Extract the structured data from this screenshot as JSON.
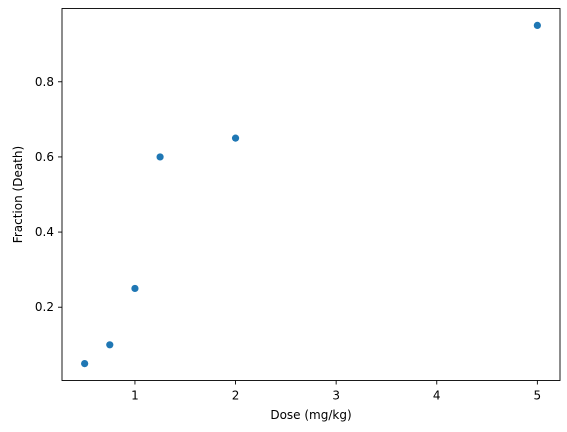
{
  "chart_data": {
    "type": "scatter",
    "title": "",
    "xlabel": "Dose (mg/kg)",
    "ylabel": "Fraction (Death)",
    "xlim": [
      0.275,
      5.225
    ],
    "ylim": [
      0.005,
      0.995
    ],
    "xticks": [
      1,
      2,
      3,
      4,
      5
    ],
    "xtick_labels": [
      "1",
      "2",
      "3",
      "4",
      "5"
    ],
    "yticks": [
      0.2,
      0.4,
      0.6,
      0.8
    ],
    "ytick_labels": [
      "0.2",
      "0.4",
      "0.6",
      "0.8"
    ],
    "grid": false,
    "series": [
      {
        "color": "#1f77b4",
        "points": [
          {
            "x": 0.5,
            "y": 0.05
          },
          {
            "x": 0.75,
            "y": 0.1
          },
          {
            "x": 1.0,
            "y": 0.25
          },
          {
            "x": 1.25,
            "y": 0.6
          },
          {
            "x": 2.0,
            "y": 0.65
          },
          {
            "x": 5.0,
            "y": 0.95
          }
        ]
      }
    ]
  }
}
